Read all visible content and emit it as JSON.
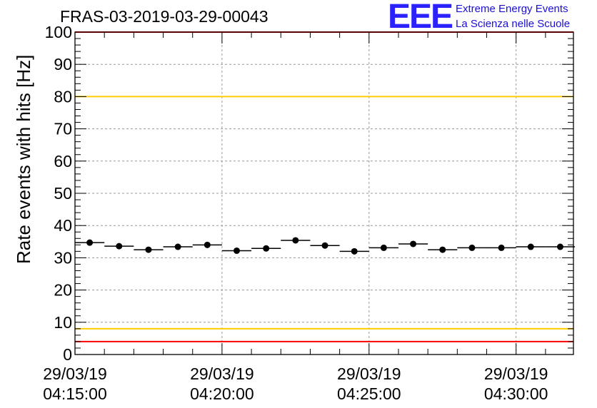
{
  "title": "FRAS-03-2019-03-29-00043",
  "logo": {
    "mark": "EEE",
    "line1": "Extreme Energy Events",
    "line2": "La Scienza nelle Scuole"
  },
  "chart_data": {
    "type": "scatter",
    "ylabel": "Rate events with hits [Hz]",
    "xlabel": "",
    "ylim": [
      0,
      100
    ],
    "yticks": [
      0,
      10,
      20,
      30,
      40,
      50,
      60,
      70,
      80,
      90,
      100
    ],
    "xlim": [
      "2019-03-29 04:15:00",
      "2019-03-29 04:31:57"
    ],
    "xticks": [
      {
        "time": "2019-03-29 04:15:00",
        "label_date": "29/03/19",
        "label_time": "04:15:00"
      },
      {
        "time": "2019-03-29 04:20:00",
        "label_date": "29/03/19",
        "label_time": "04:20:00"
      },
      {
        "time": "2019-03-29 04:25:00",
        "label_date": "29/03/19",
        "label_time": "04:25:00"
      },
      {
        "time": "2019-03-29 04:30:00",
        "label_date": "29/03/19",
        "label_time": "04:30:00"
      }
    ],
    "grid": true,
    "series": [
      {
        "x": [
          "2019-03-29 04:15:30",
          "2019-03-29 04:16:30",
          "2019-03-29 04:17:30",
          "2019-03-29 04:18:30",
          "2019-03-29 04:19:30",
          "2019-03-29 04:20:30",
          "2019-03-29 04:21:30",
          "2019-03-29 04:22:30",
          "2019-03-29 04:23:30",
          "2019-03-29 04:24:30",
          "2019-03-29 04:25:30",
          "2019-03-29 04:26:30",
          "2019-03-29 04:27:30",
          "2019-03-29 04:28:30",
          "2019-03-29 04:29:30",
          "2019-03-29 04:30:30",
          "2019-03-29 04:31:30"
        ],
        "y": [
          34.7,
          33.6,
          32.5,
          33.4,
          34.0,
          32.2,
          32.9,
          35.4,
          33.8,
          32.0,
          33.1,
          34.3,
          32.5,
          33.1,
          33.1,
          33.4,
          33.4
        ],
        "color": "#000000"
      }
    ],
    "reference_lines": [
      {
        "y": 100,
        "color": "#ff0000"
      },
      {
        "y": 80,
        "color": "#ffcc00"
      },
      {
        "y": 8,
        "color": "#ffcc00"
      },
      {
        "y": 4,
        "color": "#ff0000"
      }
    ]
  }
}
